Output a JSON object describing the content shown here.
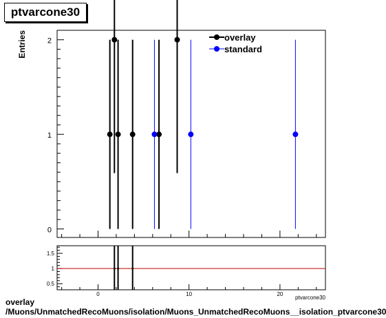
{
  "chart_data": [
    {
      "type": "scatter",
      "title": "ptvarcone30",
      "ylabel": "Entries",
      "xlim": [
        -4.5,
        25
      ],
      "ylim": [
        -0.09,
        2.1
      ],
      "x_ticks": [
        0,
        10,
        20
      ],
      "y_ticks": [
        0,
        1,
        2
      ],
      "legend": {
        "placement": "top-right",
        "entries": [
          "overlay",
          "standard"
        ]
      },
      "series": [
        {
          "name": "overlay",
          "color": "#000000",
          "points": [
            {
              "x": 1.3,
              "y": 1,
              "err": 1
            },
            {
              "x": 1.8,
              "y": 2,
              "err": 1.41
            },
            {
              "x": 2.2,
              "y": 1,
              "err": 1
            },
            {
              "x": 3.8,
              "y": 1,
              "err": 1
            },
            {
              "x": 6.7,
              "y": 1,
              "err": 1
            },
            {
              "x": 8.7,
              "y": 2,
              "err": 1.41
            }
          ]
        },
        {
          "name": "standard",
          "color": "#0000ff",
          "points": [
            {
              "x": 6.2,
              "y": 1,
              "err": 1
            },
            {
              "x": 10.2,
              "y": 1,
              "err": 1
            },
            {
              "x": 21.7,
              "y": 1,
              "err": 1
            }
          ]
        }
      ]
    },
    {
      "type": "line",
      "xlabel": "ptvarcone30",
      "xlim": [
        -4.5,
        25
      ],
      "ylim": [
        0.3,
        1.75
      ],
      "y_ticks": [
        "0.5",
        "1",
        "1.5"
      ],
      "x_ticks": [
        "0",
        "10",
        "20"
      ],
      "reference_line": {
        "y": 1,
        "color": "#c00000"
      },
      "error_bars": [
        {
          "x": 1.8,
          "y": 1
        },
        {
          "x": 2.2,
          "y": 1
        },
        {
          "x": 3.8,
          "y": 1
        }
      ]
    }
  ],
  "footer": {
    "line1": "overlay",
    "line2": "/Muons/UnmatchedRecoMuons/isolation/Muons_UnmatchedRecoMuons__isolation_ptvarcone30"
  }
}
